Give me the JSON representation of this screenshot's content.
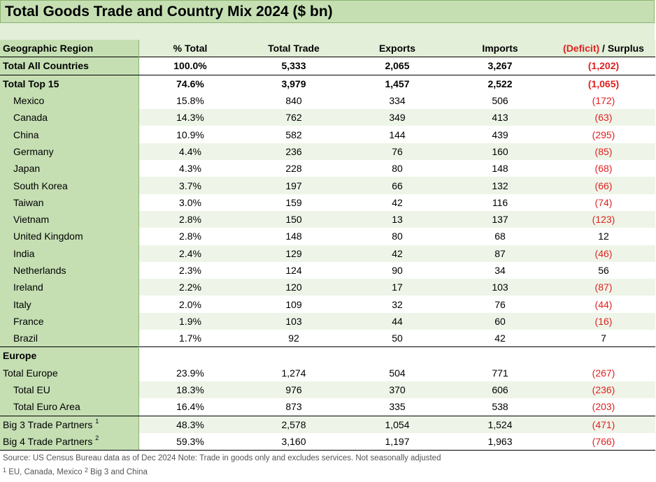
{
  "title": "Total Goods Trade and Country Mix 2024 ($ bn)",
  "headers": {
    "region": "Geographic Region",
    "pct": "% Total",
    "total": "Total Trade",
    "exports": "Exports",
    "imports": "Imports",
    "deficit": "(Deficit)",
    "surplus": " / Surplus"
  },
  "all_countries": {
    "region": "Total All Countries",
    "pct": "100.0%",
    "total": "5,333",
    "exports": "2,065",
    "imports": "3,267",
    "balance": "(1,202)"
  },
  "top15": {
    "region": "Total Top 15",
    "pct": "74.6%",
    "total": "3,979",
    "exports": "1,457",
    "imports": "2,522",
    "balance": "(1,065)"
  },
  "countries": [
    {
      "region": "Mexico",
      "pct": "15.8%",
      "total": "840",
      "exports": "334",
      "imports": "506",
      "balance": "(172)"
    },
    {
      "region": "Canada",
      "pct": "14.3%",
      "total": "762",
      "exports": "349",
      "imports": "413",
      "balance": "(63)"
    },
    {
      "region": "China",
      "pct": "10.9%",
      "total": "582",
      "exports": "144",
      "imports": "439",
      "balance": "(295)"
    },
    {
      "region": "Germany",
      "pct": "4.4%",
      "total": "236",
      "exports": "76",
      "imports": "160",
      "balance": "(85)"
    },
    {
      "region": "Japan",
      "pct": "4.3%",
      "total": "228",
      "exports": "80",
      "imports": "148",
      "balance": "(68)"
    },
    {
      "region": "South Korea",
      "pct": "3.7%",
      "total": "197",
      "exports": "66",
      "imports": "132",
      "balance": "(66)"
    },
    {
      "region": "Taiwan",
      "pct": "3.0%",
      "total": "159",
      "exports": "42",
      "imports": "116",
      "balance": "(74)"
    },
    {
      "region": "Vietnam",
      "pct": "2.8%",
      "total": "150",
      "exports": "13",
      "imports": "137",
      "balance": "(123)"
    },
    {
      "region": "United Kingdom",
      "pct": "2.8%",
      "total": "148",
      "exports": "80",
      "imports": "68",
      "balance": "12"
    },
    {
      "region": "India",
      "pct": "2.4%",
      "total": "129",
      "exports": "42",
      "imports": "87",
      "balance": "(46)"
    },
    {
      "region": "Netherlands",
      "pct": "2.3%",
      "total": "124",
      "exports": "90",
      "imports": "34",
      "balance": "56"
    },
    {
      "region": "Ireland",
      "pct": "2.2%",
      "total": "120",
      "exports": "17",
      "imports": "103",
      "balance": "(87)"
    },
    {
      "region": "Italy",
      "pct": "2.0%",
      "total": "109",
      "exports": "32",
      "imports": "76",
      "balance": "(44)"
    },
    {
      "region": "France",
      "pct": "1.9%",
      "total": "103",
      "exports": "44",
      "imports": "60",
      "balance": "(16)"
    },
    {
      "region": "Brazil",
      "pct": "1.7%",
      "total": "92",
      "exports": "50",
      "imports": "42",
      "balance": "7"
    }
  ],
  "europe_label": "Europe",
  "europe": [
    {
      "region": "Total Europe",
      "pct": "23.9%",
      "total": "1,274",
      "exports": "504",
      "imports": "771",
      "balance": "(267)"
    },
    {
      "region": "Total EU",
      "pct": "18.3%",
      "total": "976",
      "exports": "370",
      "imports": "606",
      "balance": "(236)"
    },
    {
      "region": "Total Euro Area",
      "pct": "16.4%",
      "total": "873",
      "exports": "335",
      "imports": "538",
      "balance": "(203)"
    }
  ],
  "big3": {
    "region": "Big 3 Trade Partners",
    "sup": "1",
    "pct": "48.3%",
    "total": "2,578",
    "exports": "1,054",
    "imports": "1,524",
    "balance": "(471)"
  },
  "big4": {
    "region": "Big 4 Trade Partners",
    "sup": "2",
    "pct": "59.3%",
    "total": "3,160",
    "exports": "1,197",
    "imports": "1,963",
    "balance": "(766)"
  },
  "footnote_source": "Source: US Census Bureau data as of Dec 2024 Note: Trade in goods only and excludes services. Not seasonally adjusted",
  "footnote_1_mark": "1",
  "footnote_1": " EU, Canada, Mexico ",
  "footnote_2_mark": "2",
  "footnote_2": " Big 3 and China"
}
